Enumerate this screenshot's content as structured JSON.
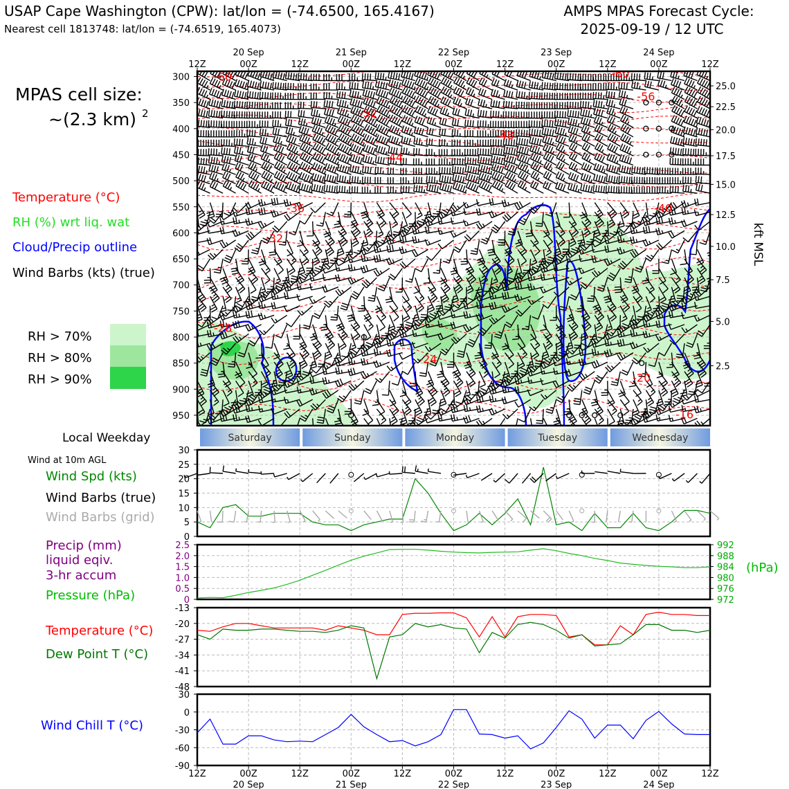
{
  "header": {
    "station_line": "USAP Cape Washington (CPW): lat/lon = (-74.6500, 165.4167)",
    "cell_line": "Nearest cell 1813748: lat/lon = (-74.6519, 165.4073)",
    "cycle_title": "AMPS MPAS Forecast Cycle:",
    "cycle_value": "2025-09-19 / 12 UTC"
  },
  "left_panel": {
    "cell_size_label": "MPAS cell size:",
    "cell_size_value": "~(2.3 km)",
    "cell_size_exp": "2",
    "legend_temperature": "Temperature (°C)",
    "legend_rh": "RH (%) wrt liq. wat",
    "legend_cloud": "Cloud/Precip outline",
    "legend_wind": "Wind Barbs (kts) (true)",
    "rh_bins": [
      {
        "label": "RH > 70%",
        "color": "#ccf5cc"
      },
      {
        "label": "RH > 80%",
        "color": "#9ee69e"
      },
      {
        "label": "RH > 90%",
        "color": "#2ed44a"
      }
    ],
    "local_weekday_label": "Local Weekday",
    "wind10_label": "Wind at 10m AGL",
    "wind_spd_label": "Wind Spd (kts)",
    "wind_barbs_true_label": "Wind Barbs (true)",
    "wind_barbs_grid_label": "Wind Barbs (grid)",
    "precip_label_1": "Precip (mm)",
    "precip_label_2": "liquid eqiv.",
    "precip_label_3": "3-hr accum",
    "pressure_label": "Pressure (hPa)",
    "temp_label": "Temperature (°C)",
    "dewpoint_label": "Dew Point T (°C)",
    "windchill_label": "Wind Chill T (°C)"
  },
  "colors": {
    "temperature": "#ff0000",
    "rh": "#22cc22",
    "cloud": "#0000ff",
    "precip": "#800080",
    "pressure": "#00aa00",
    "dewpoint": "#007700",
    "windchill": "#0000ff",
    "grid_barb": "#aaaaaa"
  },
  "chart_data": [
    {
      "type": "heatmap",
      "title": "Time-height cross section",
      "x_ticks": [
        "12Z",
        "00Z",
        "12Z",
        "00Z",
        "12Z",
        "00Z",
        "12Z",
        "00Z",
        "12Z",
        "00Z",
        "12Z"
      ],
      "x_dates": [
        "20 Sep",
        "21 Sep",
        "22 Sep",
        "23 Sep",
        "24 Sep"
      ],
      "xlim_hours": [
        0,
        120
      ],
      "ylabel_left": "Pressure (hPa)",
      "y_ticks": [
        300,
        350,
        400,
        450,
        500,
        550,
        600,
        650,
        700,
        750,
        800,
        850,
        900,
        950
      ],
      "ylim": [
        290,
        970
      ],
      "ylabel_right": "kft MSL",
      "y_right_ticks": [
        "25.0",
        "22.5",
        "20.0",
        "17.5",
        "15.0",
        "12.5",
        "10.0",
        "7.5",
        "5.0",
        "2.5"
      ],
      "y_right_pressures": [
        318,
        358,
        402,
        452,
        507,
        565,
        626,
        690,
        770,
        855
      ],
      "temperature_labels": [
        {
          "text": "-60",
          "hour": 6,
          "p": 300
        },
        {
          "text": "-60",
          "hour": 99,
          "p": 294
        },
        {
          "text": "-56",
          "hour": 105,
          "p": 338
        },
        {
          "text": "-52",
          "hour": 40,
          "p": 370
        },
        {
          "text": "-48",
          "hour": 72,
          "p": 412
        },
        {
          "text": "-44",
          "hour": 46,
          "p": 455
        },
        {
          "text": "-40",
          "hour": 109,
          "p": 552
        },
        {
          "text": "-36",
          "hour": 23,
          "p": 552
        },
        {
          "text": "-32",
          "hour": 18,
          "p": 610
        },
        {
          "text": "-28",
          "hour": 6,
          "p": 782
        },
        {
          "text": "-24",
          "hour": 54,
          "p": 842
        },
        {
          "text": "-20",
          "hour": 104,
          "p": 878
        },
        {
          "text": "-16",
          "hour": 114,
          "p": 948
        }
      ],
      "calm_markers": [
        {
          "hour": 105,
          "p": 350
        },
        {
          "hour": 108,
          "p": 350
        },
        {
          "hour": 111,
          "p": 350
        },
        {
          "hour": 105,
          "p": 400
        },
        {
          "hour": 108,
          "p": 400
        },
        {
          "hour": 111,
          "p": 400
        },
        {
          "hour": 105,
          "p": 450
        },
        {
          "hour": 108,
          "p": 450
        },
        {
          "hour": 111,
          "p": 450
        },
        {
          "hour": 39,
          "p": 800
        },
        {
          "hour": 104,
          "p": 850
        },
        {
          "hour": 36,
          "p": 950
        },
        {
          "hour": 87,
          "p": 950
        },
        {
          "hour": 90,
          "p": 950
        },
        {
          "hour": 93,
          "p": 950
        },
        {
          "hour": 99,
          "p": 950
        },
        {
          "hour": 105,
          "p": 950
        }
      ]
    },
    {
      "type": "line",
      "title": "Wind at 10m AGL",
      "x_hours": [
        0,
        3,
        6,
        9,
        12,
        15,
        18,
        21,
        24,
        27,
        30,
        33,
        36,
        39,
        42,
        45,
        48,
        51,
        54,
        57,
        60,
        63,
        66,
        69,
        72,
        75,
        78,
        81,
        84,
        87,
        90,
        93,
        96,
        99,
        102,
        105,
        108,
        111,
        114,
        117,
        120
      ],
      "series": [
        {
          "name": "Wind Spd (kts)",
          "values": [
            5,
            3,
            10,
            11,
            7,
            7,
            8,
            8,
            8,
            5,
            4,
            4,
            2,
            4,
            5,
            6,
            6,
            20,
            15,
            8,
            2,
            4,
            8,
            4,
            8,
            13,
            4,
            24,
            4,
            5,
            2,
            8,
            3,
            3,
            8,
            3,
            2,
            5,
            9,
            9,
            8
          ]
        }
      ],
      "ylim": [
        0,
        30
      ],
      "y_ticks": [
        0,
        5,
        10,
        15,
        20,
        25,
        30
      ]
    },
    {
      "type": "line",
      "title": "Precip and Pressure",
      "x_hours": [
        0,
        3,
        6,
        9,
        12,
        15,
        18,
        21,
        24,
        27,
        30,
        33,
        36,
        39,
        42,
        45,
        48,
        51,
        54,
        57,
        60,
        63,
        66,
        69,
        72,
        75,
        78,
        81,
        84,
        87,
        90,
        93,
        96,
        99,
        102,
        105,
        108,
        111,
        114,
        117,
        120
      ],
      "series": [
        {
          "name": "Pressure (hPa)",
          "values": [
            972.5,
            972.7,
            972.6,
            973.5,
            974.5,
            975.3,
            976.2,
            977.5,
            979.0,
            980.8,
            982.6,
            984.5,
            986.3,
            987.8,
            989.0,
            990.2,
            990.3,
            990.3,
            990.0,
            989.6,
            989.3,
            989.1,
            989.0,
            989.2,
            989.3,
            989.4,
            990.0,
            990.5,
            989.8,
            988.8,
            988.0,
            987.0,
            986.2,
            985.3,
            984.8,
            984.4,
            984.1,
            983.9,
            983.6,
            983.6,
            983.9
          ]
        },
        {
          "name": "Precip (mm)",
          "values": [
            0,
            0,
            0,
            0,
            0,
            0,
            0,
            0,
            0,
            0,
            0,
            0,
            0,
            0,
            0,
            0,
            0,
            0,
            0,
            0,
            0,
            0,
            0,
            0,
            0,
            0,
            0,
            0,
            0,
            0,
            0,
            0,
            0,
            0,
            0,
            0,
            0,
            0,
            0,
            0,
            0
          ]
        }
      ],
      "ylim_precip": [
        0,
        2.5
      ],
      "precip_ticks": [
        "0",
        "0.5",
        "1.0",
        "1.5",
        "2.0",
        "2.5"
      ],
      "ylim_pressure": [
        972,
        992
      ],
      "pressure_ticks": [
        "972",
        "976",
        "980",
        "984",
        "988",
        "992"
      ],
      "ylabel_right": "(hPa)"
    },
    {
      "type": "line",
      "title": "Temperature and Dew Point",
      "x_hours": [
        0,
        3,
        6,
        9,
        12,
        15,
        18,
        21,
        24,
        27,
        30,
        33,
        36,
        39,
        42,
        45,
        48,
        51,
        54,
        57,
        60,
        63,
        66,
        69,
        72,
        75,
        78,
        81,
        84,
        87,
        90,
        93,
        96,
        99,
        102,
        105,
        108,
        111,
        114,
        117,
        120
      ],
      "series": [
        {
          "name": "Temperature (°C)",
          "values": [
            -23,
            -23.5,
            -21.5,
            -20,
            -20,
            -21,
            -22,
            -22,
            -22,
            -22,
            -23,
            -21,
            -22,
            -23,
            -25,
            -25,
            -16,
            -15.5,
            -15.5,
            -15.3,
            -15.3,
            -17.5,
            -26,
            -17,
            -26,
            -17,
            -16,
            -16,
            -16.5,
            -26,
            -25,
            -29.5,
            -29.5,
            -21,
            -25,
            -16,
            -15,
            -16,
            -16,
            -16.5,
            -16.5
          ]
        },
        {
          "name": "Dew Point T (°C)",
          "values": [
            -25,
            -27,
            -22.5,
            -23,
            -23,
            -22.5,
            -22.5,
            -23,
            -23.5,
            -23.5,
            -24,
            -23,
            -21,
            -22,
            -44.5,
            -26,
            -25,
            -20,
            -21.5,
            -20.5,
            -22,
            -22.5,
            -33,
            -24,
            -26.5,
            -20.5,
            -19.5,
            -20.5,
            -23,
            -26.5,
            -25,
            -30,
            -29.5,
            -29,
            -25,
            -20.5,
            -20.5,
            -23,
            -23,
            -24,
            -23
          ]
        }
      ],
      "ylim": [
        -48,
        -13
      ],
      "y_ticks": [
        -48,
        -41,
        -34,
        -27,
        -20,
        -13
      ]
    },
    {
      "type": "line",
      "title": "Wind Chill",
      "x_hours": [
        0,
        3,
        6,
        9,
        12,
        15,
        18,
        21,
        24,
        27,
        30,
        33,
        36,
        39,
        42,
        45,
        48,
        51,
        54,
        57,
        60,
        63,
        66,
        69,
        72,
        75,
        78,
        81,
        84,
        87,
        90,
        93,
        96,
        99,
        102,
        105,
        108,
        111,
        114,
        117,
        120
      ],
      "series": [
        {
          "name": "Wind Chill T (°C)",
          "values": [
            -35,
            -12,
            -54,
            -54,
            -40,
            -40,
            -47,
            -50,
            -49,
            -50,
            -38,
            -26,
            -4,
            -25,
            -38,
            -50,
            -48,
            -57,
            -50,
            -38,
            4,
            4,
            -37,
            -38,
            -44,
            -40,
            -62,
            -52,
            -26,
            2,
            -12,
            -44,
            -22,
            -22,
            -45,
            -14,
            1,
            -20,
            -37,
            -38,
            -38
          ]
        }
      ],
      "ylim": [
        -90,
        30
      ],
      "y_ticks": [
        -90,
        -60,
        -30,
        0,
        30
      ]
    }
  ],
  "weekdays": [
    "Saturday",
    "Sunday",
    "Monday",
    "Tuesday",
    "Wednesday"
  ],
  "bottom_axis": {
    "ticks": [
      "12Z",
      "00Z",
      "12Z",
      "00Z",
      "12Z",
      "00Z",
      "12Z",
      "00Z",
      "12Z",
      "00Z",
      "12Z"
    ],
    "dates": [
      "20 Sep",
      "21 Sep",
      "22 Sep",
      "23 Sep",
      "24 Sep"
    ]
  }
}
